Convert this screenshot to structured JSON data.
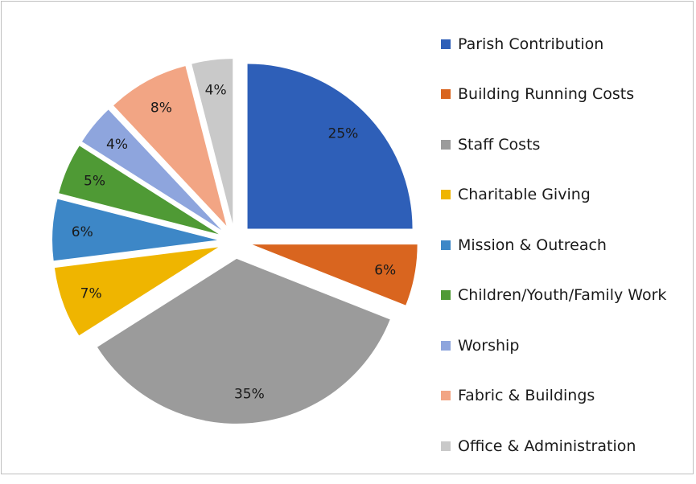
{
  "chart_data": {
    "type": "pie",
    "exploded": true,
    "legend_position": "right",
    "data_label_format": "percent",
    "slices": [
      {
        "label": "Parish Contribution",
        "value": 25,
        "display": "25%",
        "color": "#2e5fb8"
      },
      {
        "label": "Building Running Costs",
        "value": 6,
        "display": "6%",
        "color": "#d9651f"
      },
      {
        "label": "Staff Costs",
        "value": 35,
        "display": "35%",
        "color": "#9b9b9b"
      },
      {
        "label": "Charitable Giving",
        "value": 7,
        "display": "7%",
        "color": "#efb500"
      },
      {
        "label": "Mission & Outreach",
        "value": 6,
        "display": "6%",
        "color": "#3d87c7"
      },
      {
        "label": "Children/Youth/Family Work",
        "value": 5,
        "display": "5%",
        "color": "#4f9a35"
      },
      {
        "label": "Worship",
        "value": 4,
        "display": "4%",
        "color": "#8ea5dd"
      },
      {
        "label": "Fabric & Buildings",
        "value": 8,
        "display": "8%",
        "color": "#f2a584"
      },
      {
        "label": "Office & Administration",
        "value": 4,
        "display": "4%",
        "color": "#c9c9c9"
      }
    ]
  }
}
